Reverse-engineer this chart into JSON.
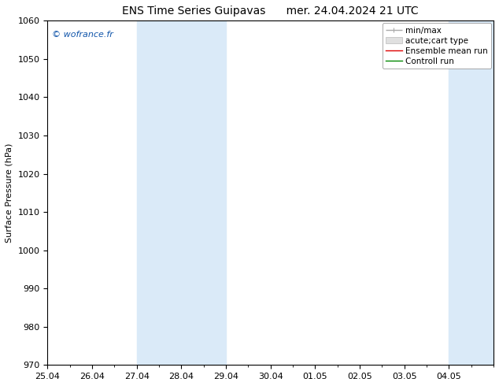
{
  "title_left": "ENS Time Series Guipavas",
  "title_right": "mer. 24.04.2024 21 UTC",
  "ylabel": "Surface Pressure (hPa)",
  "ylim": [
    970,
    1060
  ],
  "yticks": [
    970,
    980,
    990,
    1000,
    1010,
    1020,
    1030,
    1040,
    1050,
    1060
  ],
  "xstart": "2024-04-25",
  "xend": "2024-05-05",
  "xtick_positions": [
    0,
    1,
    2,
    3,
    4,
    5,
    6,
    7,
    8,
    9
  ],
  "xtick_labels": [
    "25.04",
    "26.04",
    "27.04",
    "28.04",
    "29.04",
    "30.04",
    "01.05",
    "02.05",
    "03.05",
    "04.05"
  ],
  "shaded_bands": [
    {
      "start": 2,
      "end": 4
    },
    {
      "start": 9,
      "end": 10
    }
  ],
  "shade_color": "#daeaf8",
  "background_color": "#ffffff",
  "watermark": "© wofrance.fr",
  "watermark_color": "#1155aa",
  "legend_entries": [
    {
      "label": "min/max",
      "color": "#aaaaaa",
      "lw": 1.0,
      "type": "line"
    },
    {
      "label": "acute;cart type",
      "color": "#cccccc",
      "type": "fill"
    },
    {
      "label": "Ensemble mean run",
      "color": "#dd0000",
      "lw": 1.0,
      "type": "line"
    },
    {
      "label": "Controll run",
      "color": "#008800",
      "lw": 1.0,
      "type": "line"
    }
  ],
  "title_fontsize": 10,
  "ylabel_fontsize": 8,
  "tick_fontsize": 8,
  "legend_fontsize": 7.5
}
